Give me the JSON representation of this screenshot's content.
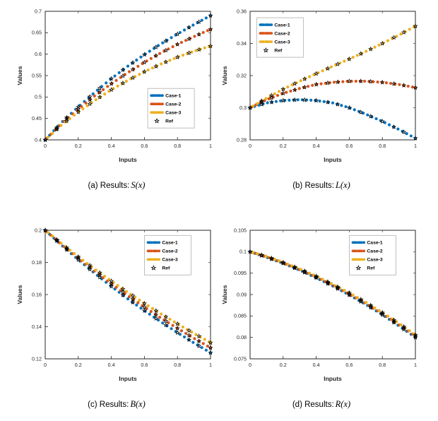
{
  "page": {
    "background": "#ffffff"
  },
  "colors": {
    "case1": "#0072BD",
    "case2": "#D95319",
    "case3": "#EDB120",
    "ref": "#000000",
    "axis": "#262626"
  },
  "chart_data": [
    {
      "id": "a",
      "type": "line",
      "caption_prefix": "(a) Results:",
      "caption_math": "S(x)",
      "xlabel": "Inputs",
      "ylabel": "Values",
      "xlim": [
        0,
        1
      ],
      "ylim": [
        0.4,
        0.7
      ],
      "xticks": [
        0,
        0.2,
        0.4,
        0.6,
        0.8,
        1
      ],
      "yticks": [
        0.4,
        0.45,
        0.5,
        0.55,
        0.6,
        0.65,
        0.7
      ],
      "grid": false,
      "legend_pos": [
        0.62,
        0.6
      ],
      "x": [
        0,
        0.1,
        0.2,
        0.3,
        0.4,
        0.5,
        0.6,
        0.7,
        0.8,
        0.9,
        1
      ],
      "series": [
        {
          "name": "Case-1",
          "color": "case1",
          "values": [
            0.4,
            0.441,
            0.477,
            0.511,
            0.543,
            0.572,
            0.599,
            0.624,
            0.647,
            0.669,
            0.69
          ]
        },
        {
          "name": "Case-2",
          "color": "case2",
          "values": [
            0.4,
            0.438,
            0.472,
            0.503,
            0.531,
            0.557,
            0.581,
            0.603,
            0.623,
            0.641,
            0.658
          ]
        },
        {
          "name": "Case-3",
          "color": "case3",
          "values": [
            0.4,
            0.435,
            0.465,
            0.492,
            0.517,
            0.539,
            0.559,
            0.577,
            0.593,
            0.607,
            0.619
          ]
        }
      ],
      "ref": {
        "name": "Ref",
        "marker": "pentagram",
        "on_all_series": true,
        "x": [
          0,
          0.07,
          0.13,
          0.2,
          0.27,
          0.33,
          0.4,
          0.47,
          0.53,
          0.6,
          0.67,
          0.73,
          0.8,
          0.87,
          0.93,
          1
        ]
      }
    },
    {
      "id": "b",
      "type": "line",
      "caption_prefix": "(b) Results:",
      "caption_math": "L(x)",
      "xlabel": "Inputs",
      "ylabel": "Values",
      "xlim": [
        0,
        1
      ],
      "ylim": [
        0.28,
        0.36
      ],
      "xticks": [
        0,
        0.2,
        0.4,
        0.6,
        0.8,
        1
      ],
      "yticks": [
        0.28,
        0.3,
        0.32,
        0.34,
        0.36
      ],
      "grid": false,
      "legend_pos": [
        0.04,
        0.05
      ],
      "x": [
        0,
        0.1,
        0.2,
        0.3,
        0.4,
        0.5,
        0.6,
        0.7,
        0.8,
        0.9,
        1
      ],
      "series": [
        {
          "name": "Case-1",
          "color": "case1",
          "values": [
            0.3,
            0.303,
            0.3045,
            0.305,
            0.3045,
            0.303,
            0.3,
            0.296,
            0.2915,
            0.2865,
            0.281
          ]
        },
        {
          "name": "Case-2",
          "color": "case2",
          "values": [
            0.3,
            0.305,
            0.309,
            0.312,
            0.3145,
            0.3158,
            0.3165,
            0.3165,
            0.3158,
            0.3145,
            0.3125
          ]
        },
        {
          "name": "Case-3",
          "color": "case3",
          "values": [
            0.3,
            0.306,
            0.3115,
            0.3165,
            0.3212,
            0.3258,
            0.3303,
            0.335,
            0.34,
            0.3452,
            0.3508
          ]
        }
      ],
      "ref": {
        "name": "Ref",
        "marker": "pentagram",
        "on_all_series": true,
        "x": [
          0,
          0.07,
          0.13,
          0.2,
          0.27,
          0.33,
          0.4,
          0.47,
          0.53,
          0.6,
          0.67,
          0.73,
          0.8,
          0.87,
          0.93,
          1
        ]
      }
    },
    {
      "id": "c",
      "type": "line",
      "caption_prefix": "(c) Results:",
      "caption_math": "B(x)",
      "xlabel": "Inputs",
      "ylabel": "Values",
      "xlim": [
        0,
        1
      ],
      "ylim": [
        0.12,
        0.2
      ],
      "xticks": [
        0,
        0.2,
        0.4,
        0.6,
        0.8,
        1
      ],
      "yticks": [
        0.12,
        0.14,
        0.16,
        0.18,
        0.2
      ],
      "grid": false,
      "legend_pos": [
        0.6,
        0.04
      ],
      "x": [
        0,
        0.1,
        0.2,
        0.3,
        0.4,
        0.5,
        0.6,
        0.7,
        0.8,
        0.9,
        1
      ],
      "series": [
        {
          "name": "Case-1",
          "color": "case1",
          "values": [
            0.2,
            0.1906,
            0.1817,
            0.1732,
            0.1651,
            0.1573,
            0.15,
            0.143,
            0.1363,
            0.1299,
            0.1238
          ]
        },
        {
          "name": "Case-2",
          "color": "case2",
          "values": [
            0.2,
            0.1911,
            0.1826,
            0.1745,
            0.1667,
            0.1593,
            0.1522,
            0.1454,
            0.139,
            0.1328,
            0.1269
          ]
        },
        {
          "name": "Case-3",
          "color": "case3",
          "values": [
            0.2,
            0.1916,
            0.1835,
            0.1758,
            0.1684,
            0.1613,
            0.1545,
            0.148,
            0.1418,
            0.1358,
            0.1301
          ]
        }
      ],
      "ref": {
        "name": "Ref",
        "marker": "pentagram",
        "on_all_series": true,
        "x": [
          0,
          0.07,
          0.13,
          0.2,
          0.27,
          0.33,
          0.4,
          0.47,
          0.53,
          0.6,
          0.67,
          0.73,
          0.8,
          0.87,
          0.93,
          1
        ]
      }
    },
    {
      "id": "d",
      "type": "line",
      "caption_prefix": "(d) Results:",
      "caption_math": "R(x)",
      "xlabel": "Inputs",
      "ylabel": "Values",
      "xlim": [
        0,
        1
      ],
      "ylim": [
        0.075,
        0.105
      ],
      "xticks": [
        0,
        0.2,
        0.4,
        0.6,
        0.8,
        1
      ],
      "yticks": [
        0.075,
        0.08,
        0.085,
        0.09,
        0.095,
        0.1,
        0.105
      ],
      "grid": false,
      "legend_pos": [
        0.6,
        0.04
      ],
      "x": [
        0,
        0.1,
        0.2,
        0.3,
        0.4,
        0.5,
        0.6,
        0.7,
        0.8,
        0.9,
        1
      ],
      "series": [
        {
          "name": "Case-1",
          "color": "case1",
          "values": [
            0.1,
            0.0987,
            0.0973,
            0.0957,
            0.0939,
            0.092,
            0.0899,
            0.0877,
            0.0853,
            0.0827,
            0.08
          ]
        },
        {
          "name": "Case-2",
          "color": "case2",
          "values": [
            0.1,
            0.0988,
            0.0974,
            0.0958,
            0.0941,
            0.0922,
            0.0901,
            0.0879,
            0.0855,
            0.083,
            0.0803
          ]
        },
        {
          "name": "Case-3",
          "color": "case3",
          "values": [
            0.1,
            0.0989,
            0.0975,
            0.096,
            0.0943,
            0.0924,
            0.0904,
            0.0882,
            0.0858,
            0.0833,
            0.0806
          ]
        }
      ],
      "ref": {
        "name": "Ref",
        "marker": "pentagram",
        "on_all_series": true,
        "x": [
          0,
          0.07,
          0.13,
          0.2,
          0.27,
          0.33,
          0.4,
          0.47,
          0.53,
          0.6,
          0.67,
          0.73,
          0.8,
          0.87,
          0.93,
          1
        ]
      }
    }
  ]
}
